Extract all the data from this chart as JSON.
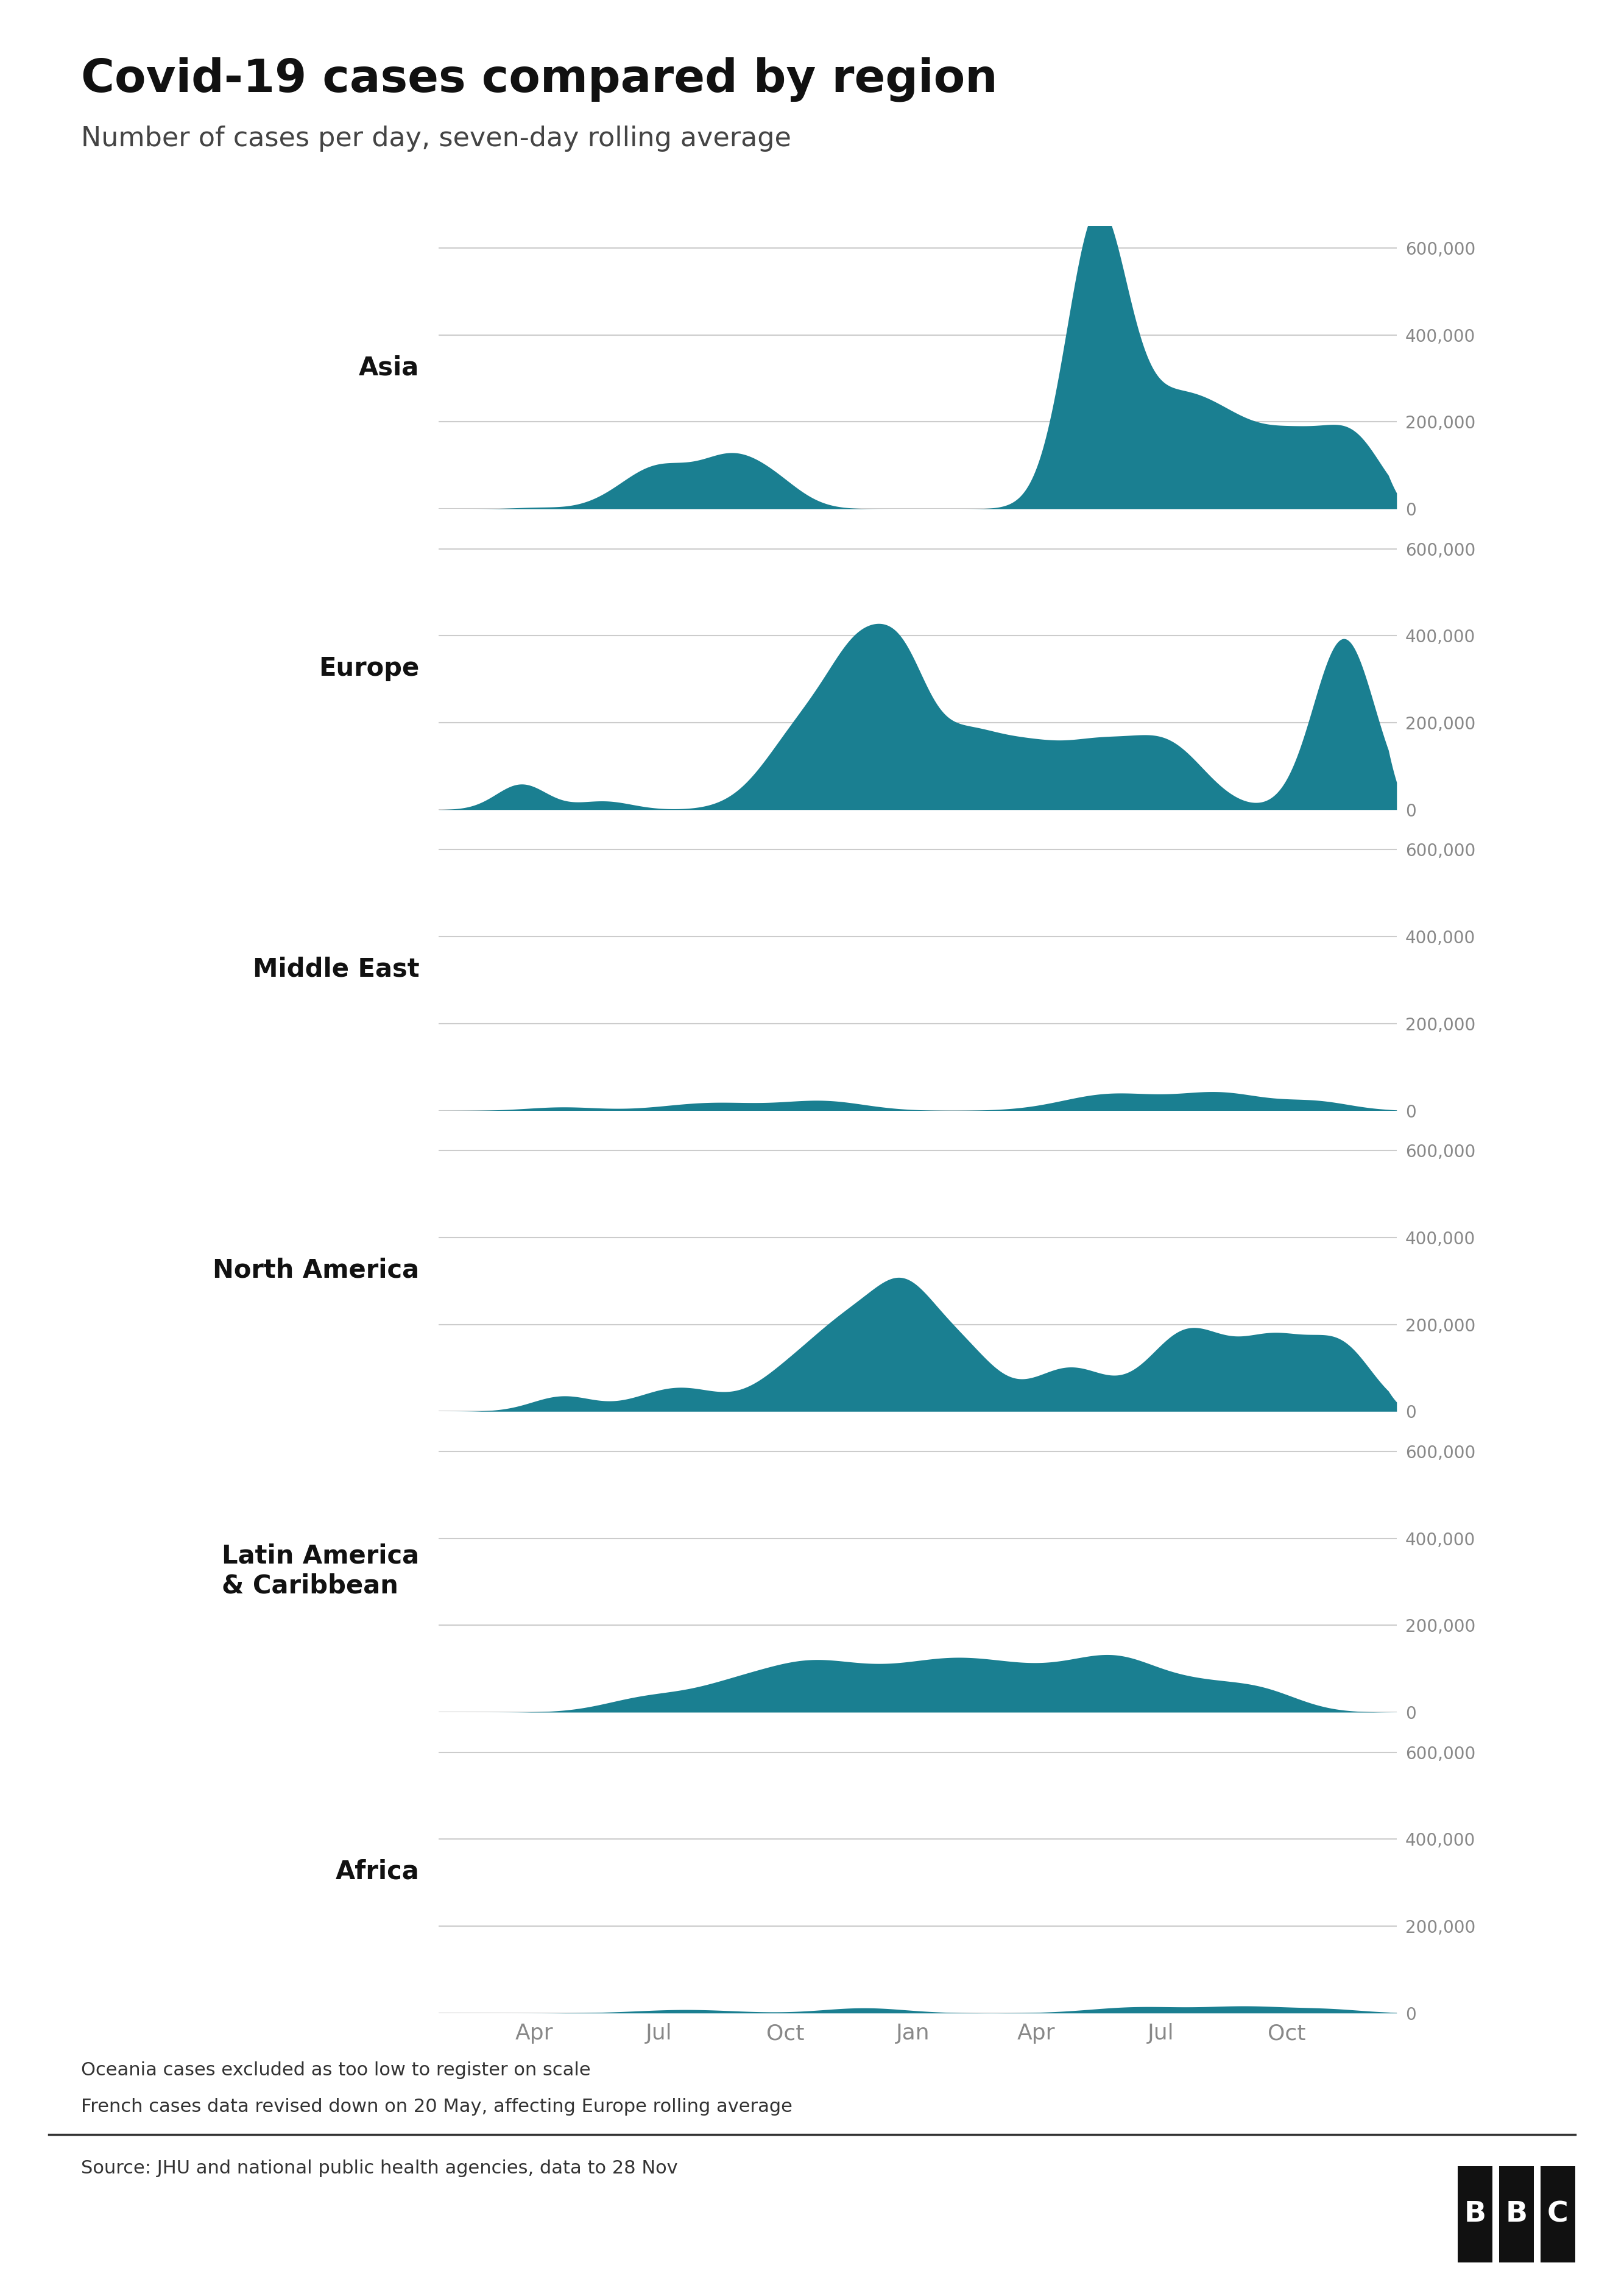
{
  "title": "Covid-19 cases compared by region",
  "subtitle": "Number of cases per day, seven-day rolling average",
  "source": "Source: JHU and national public health agencies, data to 28 Nov",
  "footnote1": "Oceania cases excluded as too low to register on scale",
  "footnote2": "French cases data revised down on 20 May, affecting Europe rolling average",
  "fill_color": "#1a7f91",
  "grid_color": "#cccccc",
  "background_color": "#ffffff",
  "label_color": "#111111",
  "tick_color": "#888888",
  "source_color": "#333333",
  "regions": [
    "Asia",
    "Europe",
    "Middle East",
    "North America",
    "Latin America\n& Caribbean",
    "Africa"
  ],
  "ylim": 650000,
  "yticks": [
    0,
    200000,
    400000,
    600000
  ],
  "ytick_labels": [
    "0",
    "200,000",
    "400,000",
    "600,000"
  ],
  "x_tick_labels": [
    "Apr",
    "Jul",
    "Oct",
    "Jan",
    "Apr",
    "Jul",
    "Oct"
  ],
  "n_days": 700
}
